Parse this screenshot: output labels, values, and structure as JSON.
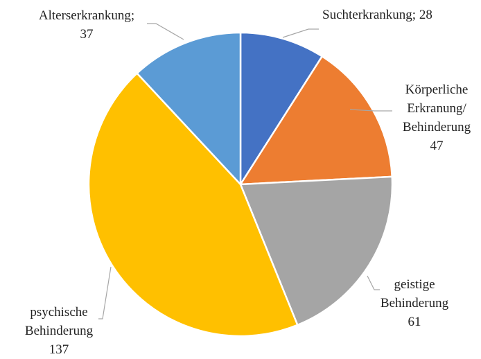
{
  "chart_data": {
    "type": "pie",
    "categories": [
      "Suchterkrankung;",
      "Körperliche Erkranung/ Behinderung",
      "geistige Behinderung",
      "psychische Behinderung",
      "Alterserkrankung;"
    ],
    "values": [
      28,
      47,
      61,
      137,
      37
    ],
    "colors": [
      "#4472c4",
      "#ed7d31",
      "#a5a5a5",
      "#ffc000",
      "#5b9bd5"
    ]
  }
}
